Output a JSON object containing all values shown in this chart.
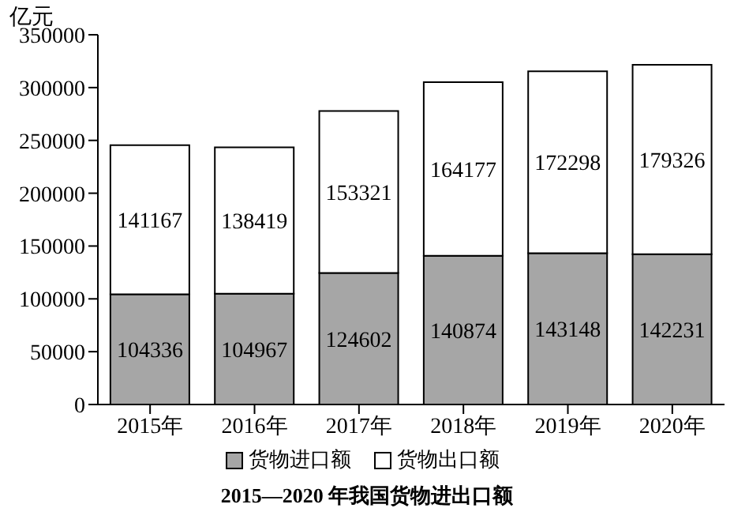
{
  "chart_data": {
    "type": "bar",
    "title": "2015—2020 年我国货物进出口额",
    "ylabel": "亿元",
    "categories": [
      "2015年",
      "2016年",
      "2017年",
      "2018年",
      "2019年",
      "2020年"
    ],
    "series": [
      {
        "name": "货物进口额",
        "color": "#a6a6a6",
        "values": [
          104336,
          104967,
          124602,
          140874,
          143148,
          142231
        ]
      },
      {
        "name": "货物出口额",
        "color": "#ffffff",
        "values": [
          141167,
          138419,
          153321,
          164177,
          172298,
          179326
        ]
      }
    ],
    "stacked": true,
    "data_labels": true,
    "ylim": [
      0,
      350000
    ],
    "yticks": [
      0,
      50000,
      100000,
      150000,
      200000,
      250000,
      300000,
      350000
    ],
    "grid": false,
    "legend": "bottom"
  }
}
